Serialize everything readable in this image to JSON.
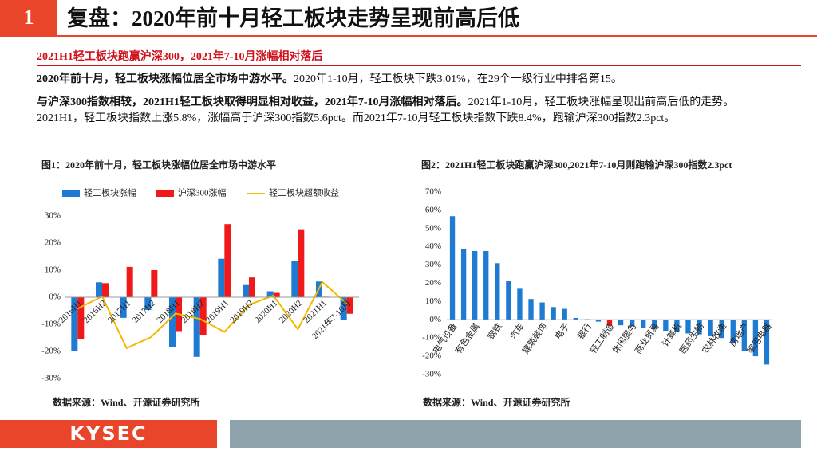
{
  "header": {
    "number": "1",
    "title": "复盘：2020年前十月轻工板块走势呈现前高后低"
  },
  "subtitle": "2021H1轻工板块跑赢沪深300，2021年7-10月涨幅相对落后",
  "paragraphs": [
    {
      "bold": "2020年前十月，轻工板块涨幅位居全市场中游水平。",
      "text": "2020年1-10月，轻工板块下跌3.01%，在29个一级行业中排名第15。"
    },
    {
      "bold": "与沪深300指数相较，2021H1轻工板块取得明显相对收益，2021年7-10月涨幅相对落后。",
      "text": "2021年1-10月，轻工板块涨幅呈现出前高后低的走势。2021H1，轻工板块指数上涨5.8%，涨幅高于沪深300指数5.6pct。而2021年7-10月轻工板块指数下跌8.4%，跑输沪深300指数2.3pct。"
    }
  ],
  "logo": "KYSEC",
  "chart_data": [
    {
      "type": "bar",
      "title": "图1：2020年前十月，轻工板块涨幅位居全市场中游水平",
      "source": "数据来源：Wind、开源证券研究所",
      "categories": [
        "2016H1",
        "2016H2",
        "2017H1",
        "2017H2",
        "2018H1",
        "2018H2",
        "2019H1",
        "2019H2",
        "2020H1",
        "2020H2",
        "2021H1",
        "2021年7-10月"
      ],
      "series": [
        {
          "name": "轻工板块涨幅",
          "color": "#1f7bd1",
          "values": [
            -19.8,
            5.5,
            -7.6,
            -4.7,
            -18.5,
            -22,
            14.2,
            4.5,
            2.2,
            13.3,
            5.8,
            -8.4
          ]
        },
        {
          "name": "沪深300涨幅",
          "color": "#f01818",
          "values": [
            -15.6,
            5.2,
            11.2,
            10,
            -12.5,
            -14,
            27,
            7.3,
            1.6,
            25.1,
            0.2,
            -6.1
          ]
        },
        {
          "name": "轻工板块超额收益",
          "color": "#f5b800",
          "type": "line",
          "values": [
            -4.2,
            0.3,
            -18.8,
            -14.7,
            -6,
            -8,
            -12.8,
            -2.8,
            0.6,
            -11.8,
            5.6,
            -2.3
          ]
        }
      ],
      "ylim": [
        -30,
        30
      ],
      "yticks": [
        {
          "value": -30,
          "label": "-30%"
        },
        {
          "value": -20,
          "label": "-20%"
        },
        {
          "value": -10,
          "label": "-10%"
        },
        {
          "value": 0,
          "label": "0%"
        },
        {
          "value": 10,
          "label": "10%"
        },
        {
          "value": 20,
          "label": "20%"
        },
        {
          "value": 30,
          "label": "30%"
        }
      ],
      "legend": "top"
    },
    {
      "type": "bar",
      "title": "图2：2021H1轻工板块跑赢沪深300,2021年7-10月则跑输沪深300指数2.3pct",
      "source": "数据来源：Wind、开源证券研究所",
      "categories": [
        "电气设备",
        null,
        "有色金属",
        null,
        "钢铁",
        null,
        "汽车",
        null,
        "建筑装饰",
        null,
        "电子",
        null,
        "银行",
        null,
        "轻工制造",
        null,
        "休闲服务",
        null,
        "商业贸易",
        null,
        "计算机",
        null,
        "医药生物",
        null,
        "农林牧渔",
        null,
        "房地产",
        null,
        "家用电器"
      ],
      "values": [
        56.8,
        38.9,
        37.7,
        37.7,
        31,
        21.5,
        17,
        11.4,
        9.5,
        7,
        6,
        1,
        0.3,
        -1,
        -3.01,
        -3,
        -3.5,
        -4.5,
        -5,
        -6,
        -6.5,
        -7.5,
        -8,
        -9,
        -10,
        -13,
        -17,
        -20,
        -24.5
      ],
      "colors": [
        "#1f7bd1",
        "#1f7bd1",
        "#1f7bd1",
        "#1f7bd1",
        "#1f7bd1",
        "#1f7bd1",
        "#1f7bd1",
        "#1f7bd1",
        "#1f7bd1",
        "#1f7bd1",
        "#1f7bd1",
        "#1f7bd1",
        "#1f7bd1",
        "#1f7bd1",
        "#f01818",
        "#1f7bd1",
        "#1f7bd1",
        "#1f7bd1",
        "#1f7bd1",
        "#1f7bd1",
        "#1f7bd1",
        "#1f7bd1",
        "#1f7bd1",
        "#1f7bd1",
        "#1f7bd1",
        "#1f7bd1",
        "#1f7bd1",
        "#1f7bd1",
        "#1f7bd1"
      ],
      "ylim": [
        -30,
        70
      ],
      "yticks": [
        {
          "value": -30,
          "label": "-30%"
        },
        {
          "value": -20,
          "label": "-20%"
        },
        {
          "value": -10,
          "label": "-10%"
        },
        {
          "value": 0,
          "label": "0%"
        },
        {
          "value": 10,
          "label": "10%"
        },
        {
          "value": 20,
          "label": "20%"
        },
        {
          "value": 30,
          "label": "30%"
        },
        {
          "value": 40,
          "label": "40%"
        },
        {
          "value": 50,
          "label": "50%"
        },
        {
          "value": 60,
          "label": "60%"
        },
        {
          "value": 70,
          "label": "70%"
        }
      ]
    }
  ]
}
